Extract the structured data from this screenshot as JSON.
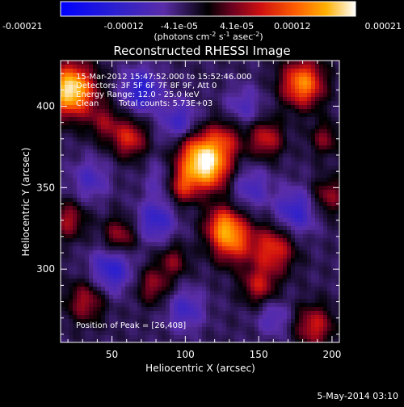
{
  "chart_data": {
    "type": "heatmap",
    "title": "Reconstructed RHESSI Image",
    "xlabel": "Heliocentric X (arcsec)",
    "ylabel": "Heliocentric Y (arcsec)",
    "xlim": [
      15,
      205
    ],
    "ylim": [
      255,
      428
    ],
    "xticks": [
      50,
      100,
      150,
      200
    ],
    "yticks": [
      300,
      350,
      400
    ],
    "colorbar": {
      "ticks": [
        "-0.00021",
        "-0.00012",
        "-4.1e-05",
        "4.1e-05",
        "0.00012",
        "0.00021"
      ],
      "values": [
        -0.00021,
        -0.00012,
        -4.1e-05,
        4.1e-05,
        0.00012,
        0.00021
      ],
      "range": [
        -0.00021,
        0.00021
      ],
      "unit_prefix": "(photons cm",
      "unit_exp1": "-2",
      "unit_mid": " s",
      "unit_exp2": "-1",
      "unit_mid2": " asec",
      "unit_exp3": "-2",
      "unit_suffix": ")"
    },
    "annotations": {
      "time": "15-Mar-2012 15:47:52.000 to 15:52:46.000",
      "detectors": "Detectors: 3F 5F 6F 7F 8F 9F, Att 0",
      "energy": "Energy Range: 12.0 - 25.0 keV",
      "clean": "Clean",
      "counts": "Total counts: 5.73E+03",
      "peak": "Position of Peak = [26,408]"
    },
    "peak": {
      "x": 26,
      "y": 408
    },
    "features": [
      {
        "x": 22,
        "y": 410,
        "amp": 1.35,
        "s": 11
      },
      {
        "x": 108,
        "y": 370,
        "amp": 0.95,
        "s": 10
      },
      {
        "x": 118,
        "y": 360,
        "amp": 0.8,
        "s": 9
      },
      {
        "x": 126,
        "y": 378,
        "amp": 0.6,
        "s": 9
      },
      {
        "x": 98,
        "y": 352,
        "amp": 0.7,
        "s": 8
      },
      {
        "x": 132,
        "y": 318,
        "amp": 0.85,
        "s": 10
      },
      {
        "x": 125,
        "y": 328,
        "amp": 0.6,
        "s": 8
      },
      {
        "x": 180,
        "y": 414,
        "amp": 1.0,
        "s": 10
      },
      {
        "x": 155,
        "y": 380,
        "amp": 0.6,
        "s": 8
      },
      {
        "x": 160,
        "y": 312,
        "amp": 0.7,
        "s": 10
      },
      {
        "x": 150,
        "y": 290,
        "amp": 0.55,
        "s": 8
      },
      {
        "x": 62,
        "y": 380,
        "amp": 0.65,
        "s": 8
      },
      {
        "x": 45,
        "y": 390,
        "amp": 0.4,
        "s": 8
      },
      {
        "x": 55,
        "y": 320,
        "amp": 0.5,
        "s": 8
      },
      {
        "x": 78,
        "y": 290,
        "amp": 0.45,
        "s": 8
      },
      {
        "x": 32,
        "y": 280,
        "amp": 0.5,
        "s": 9
      },
      {
        "x": 92,
        "y": 305,
        "amp": 0.4,
        "s": 7
      },
      {
        "x": 198,
        "y": 345,
        "amp": 0.45,
        "s": 8
      },
      {
        "x": 195,
        "y": 380,
        "amp": 0.4,
        "s": 7
      },
      {
        "x": 188,
        "y": 265,
        "amp": 0.6,
        "s": 9
      },
      {
        "x": 20,
        "y": 330,
        "amp": 0.5,
        "s": 8
      },
      {
        "x": 70,
        "y": 410,
        "amp": -0.6,
        "s": 9
      },
      {
        "x": 96,
        "y": 390,
        "amp": -0.45,
        "s": 9
      },
      {
        "x": 85,
        "y": 355,
        "amp": -0.3,
        "s": 8
      },
      {
        "x": 80,
        "y": 330,
        "amp": -0.5,
        "s": 9
      },
      {
        "x": 50,
        "y": 300,
        "amp": -0.55,
        "s": 10
      },
      {
        "x": 100,
        "y": 275,
        "amp": -0.4,
        "s": 9
      },
      {
        "x": 175,
        "y": 335,
        "amp": -0.5,
        "s": 10
      },
      {
        "x": 145,
        "y": 350,
        "amp": -0.35,
        "s": 9
      },
      {
        "x": 160,
        "y": 270,
        "amp": -0.3,
        "s": 8
      },
      {
        "x": 140,
        "y": 400,
        "amp": -0.3,
        "s": 9
      },
      {
        "x": 35,
        "y": 355,
        "amp": -0.35,
        "s": 9
      }
    ]
  },
  "footer": {
    "date": "5-May-2014 03:10"
  }
}
